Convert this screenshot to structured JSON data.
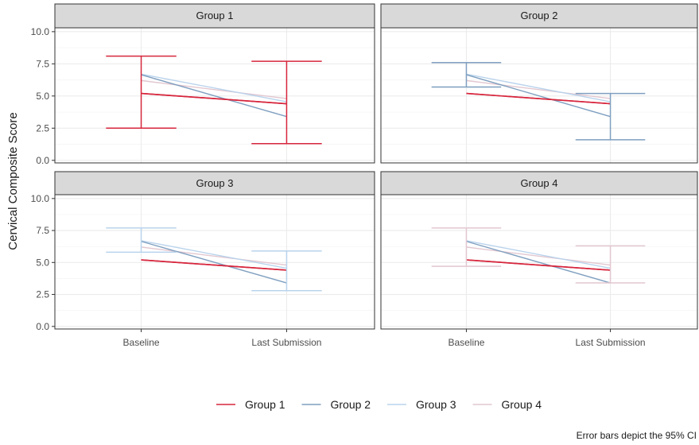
{
  "chart_data": {
    "type": "line",
    "ylabel": "Cervical Composite Score",
    "xlabel": "",
    "categories": [
      "Baseline",
      "Last Submission"
    ],
    "yticks": [
      "0.0",
      "2.5",
      "5.0",
      "7.5",
      "10.0"
    ],
    "ylim": [
      -0.2,
      10.3
    ],
    "grid": true,
    "legend_position": "bottom",
    "caption": "Error bars depict the 95% CI",
    "colors": {
      "Group 1": "#d7263d",
      "Group 2": "#7f9fc0",
      "Group 3": "#b9d3ec",
      "Group 4": "#e2c7d0"
    },
    "series": [
      {
        "name": "Group 1",
        "values": [
          5.2,
          4.4
        ]
      },
      {
        "name": "Group 2",
        "values": [
          6.65,
          3.4
        ]
      },
      {
        "name": "Group 3",
        "values": [
          6.7,
          4.55
        ]
      },
      {
        "name": "Group 4",
        "values": [
          6.2,
          4.8
        ]
      }
    ],
    "panels": [
      {
        "title": "Group 1",
        "focus": "Group 1",
        "ci": [
          [
            2.5,
            8.1
          ],
          [
            1.3,
            7.7
          ]
        ]
      },
      {
        "title": "Group 2",
        "focus": "Group 2",
        "ci": [
          [
            5.7,
            7.6
          ],
          [
            1.6,
            5.2
          ]
        ]
      },
      {
        "title": "Group 3",
        "focus": "Group 3",
        "ci": [
          [
            5.8,
            7.7
          ],
          [
            2.8,
            5.9
          ]
        ]
      },
      {
        "title": "Group 4",
        "focus": "Group 4",
        "ci": [
          [
            4.7,
            7.7
          ],
          [
            3.4,
            6.3
          ]
        ]
      }
    ]
  }
}
